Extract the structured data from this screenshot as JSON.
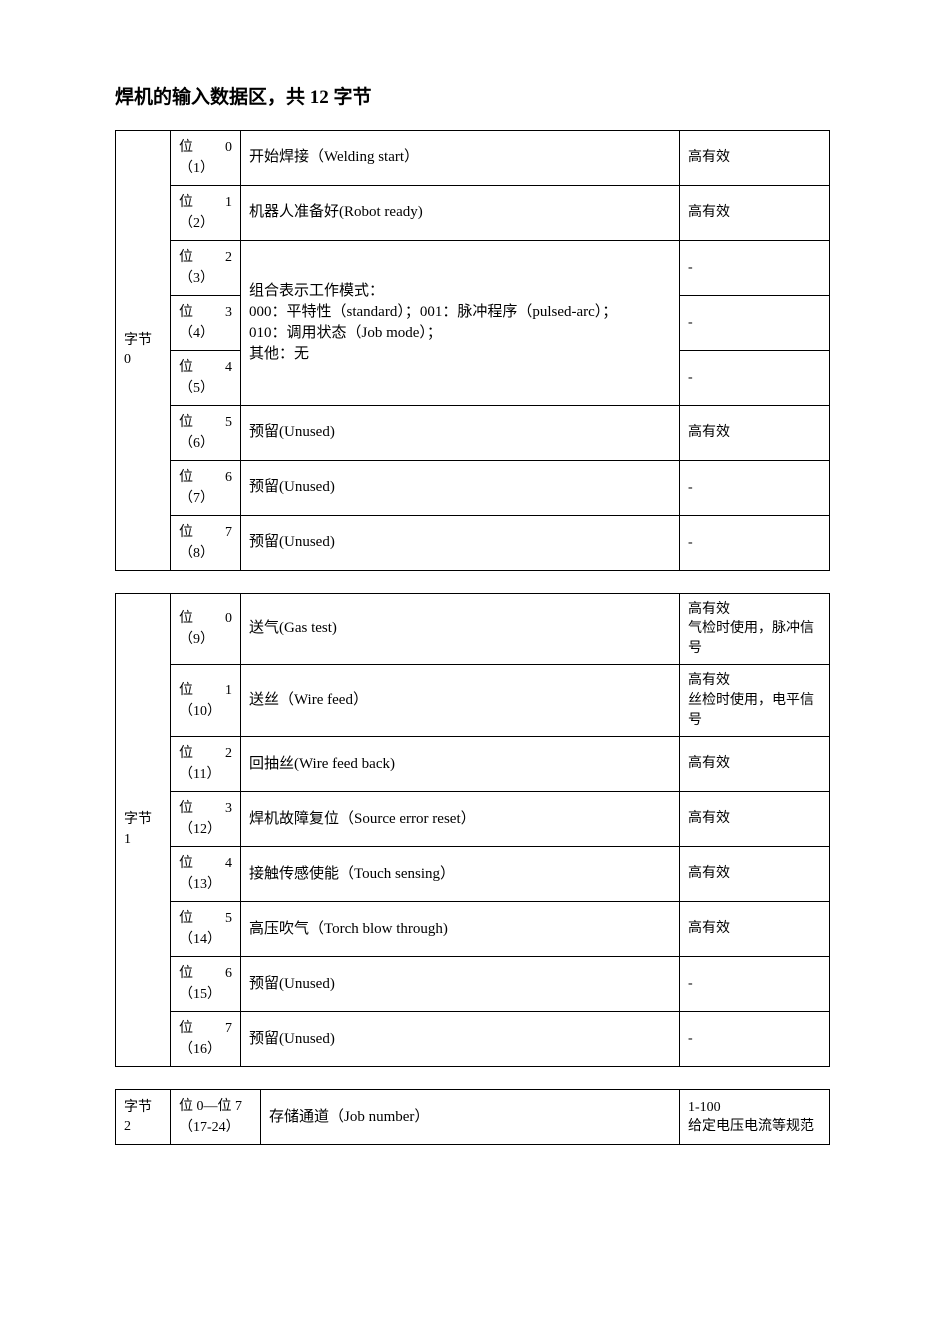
{
  "title_prefix": "焊机的输入数据区，共 ",
  "title_num": "12",
  "title_suffix": " 字节",
  "tables": [
    {
      "byte_label": "字节 0",
      "rows": [
        {
          "bit_label": "位",
          "bit_num": "0",
          "bit_sub": "（1）",
          "desc": "开始焊接（Welding start）",
          "note": "高有效",
          "rowspan": 1
        },
        {
          "bit_label": "位",
          "bit_num": "1",
          "bit_sub": "（2）",
          "desc": "机器人准备好(Robot ready)",
          "note": "高有效",
          "rowspan": 1
        },
        {
          "bit_label": "位",
          "bit_num": "2",
          "bit_sub": "（3）",
          "desc_group_start": true,
          "desc_group_rowspan": 3,
          "desc": "组合表示工作模式：\n000：平特性（standard）；001：脉冲程序（pulsed-arc）；\n010：调用状态（Job mode）；\n其他：无",
          "note": "-",
          "rowspan": 1
        },
        {
          "bit_label": "位",
          "bit_num": "3",
          "bit_sub": "（4）",
          "note": "-",
          "rowspan": 1
        },
        {
          "bit_label": "位",
          "bit_num": "4",
          "bit_sub": "（5）",
          "note": "-",
          "rowspan": 1
        },
        {
          "bit_label": "位",
          "bit_num": "5",
          "bit_sub": "（6）",
          "desc": "预留(Unused)",
          "note": "高有效",
          "rowspan": 1
        },
        {
          "bit_label": "位",
          "bit_num": "6",
          "bit_sub": "（7）",
          "desc": "预留(Unused)",
          "note": "-",
          "rowspan": 1
        },
        {
          "bit_label": "位",
          "bit_num": "7",
          "bit_sub": "（8）",
          "desc": "预留(Unused)",
          "note": "-",
          "rowspan": 1
        }
      ]
    },
    {
      "byte_label": "字节 1",
      "rows": [
        {
          "bit_label": "位",
          "bit_num": "0",
          "bit_sub": "（9）",
          "desc": "送气(Gas test)",
          "note": "高有效\n气检时使用，脉冲信号",
          "rowspan": 1
        },
        {
          "bit_label": "位",
          "bit_num": "1",
          "bit_sub": "（10）",
          "desc": "送丝（Wire feed）",
          "note": "高有效\n丝检时使用，电平信号",
          "rowspan": 1
        },
        {
          "bit_label": "位",
          "bit_num": "2",
          "bit_sub": "（11）",
          "desc": "回抽丝(Wire feed back)",
          "note": "高有效",
          "rowspan": 1
        },
        {
          "bit_label": "位",
          "bit_num": "3",
          "bit_sub": "（12）",
          "desc": "焊机故障复位（Source error reset）",
          "note": "高有效",
          "rowspan": 1
        },
        {
          "bit_label": "位",
          "bit_num": "4",
          "bit_sub": "（13）",
          "desc": "接触传感使能（Touch sensing）",
          "note": "高有效",
          "rowspan": 1
        },
        {
          "bit_label": "位",
          "bit_num": "5",
          "bit_sub": "（14）",
          "desc": "高压吹气（Torch blow through)",
          "note": "高有效",
          "rowspan": 1
        },
        {
          "bit_label": "位",
          "bit_num": "6",
          "bit_sub": "（15）",
          "desc": "预留(Unused)",
          "note": "-",
          "rowspan": 1
        },
        {
          "bit_label": "位",
          "bit_num": "7",
          "bit_sub": "（16）",
          "desc": "预留(Unused)",
          "note": "-",
          "rowspan": 1
        }
      ]
    },
    {
      "byte_label": "字节 2",
      "rows": [
        {
          "bit_full": "位 0—位 7\n（17-24）",
          "desc": "存储通道（Job number）",
          "note": "1-100\n给定电压电流等规范",
          "rowspan": 1
        }
      ]
    }
  ]
}
